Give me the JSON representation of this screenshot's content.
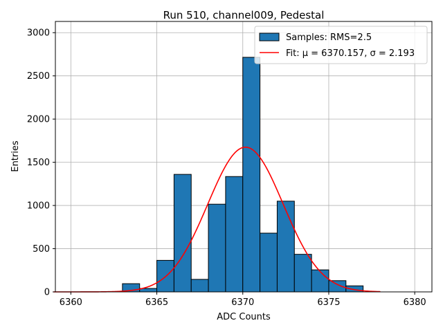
{
  "chart_data": {
    "type": "bar",
    "title": "Run 510, channel009, Pedestal",
    "xlabel": "ADC Counts",
    "ylabel": "Entries",
    "xlim": [
      6359.1,
      6381.0
    ],
    "ylim": [
      0,
      3130
    ],
    "x_ticks": [
      6360,
      6365,
      6370,
      6375,
      6380
    ],
    "y_ticks": [
      0,
      500,
      1000,
      1500,
      2000,
      2500,
      3000
    ],
    "grid": true,
    "legend_position": "top-right",
    "bin_width": 1,
    "bar_color": "#1f77b4",
    "fit_color": "#ff0000",
    "bins": [
      {
        "x": 6363.5,
        "value": 95
      },
      {
        "x": 6364.5,
        "value": 40
      },
      {
        "x": 6365.5,
        "value": 365
      },
      {
        "x": 6366.5,
        "value": 1360
      },
      {
        "x": 6367.5,
        "value": 145
      },
      {
        "x": 6368.5,
        "value": 1015
      },
      {
        "x": 6369.5,
        "value": 1335
      },
      {
        "x": 6370.5,
        "value": 2715
      },
      {
        "x": 6371.5,
        "value": 680
      },
      {
        "x": 6372.5,
        "value": 1050
      },
      {
        "x": 6373.5,
        "value": 435
      },
      {
        "x": 6374.5,
        "value": 255
      },
      {
        "x": 6375.5,
        "value": 130
      },
      {
        "x": 6376.5,
        "value": 70
      }
    ],
    "series": [
      {
        "name": "Samples: RMS=2.5",
        "kind": "histogram"
      },
      {
        "name": "Fit: μ = 6370.157, σ = 2.193",
        "kind": "gaussian",
        "mu": 6370.157,
        "sigma": 2.193,
        "amplitude": 1675,
        "x_range": [
          6359,
          6378
        ]
      }
    ]
  }
}
